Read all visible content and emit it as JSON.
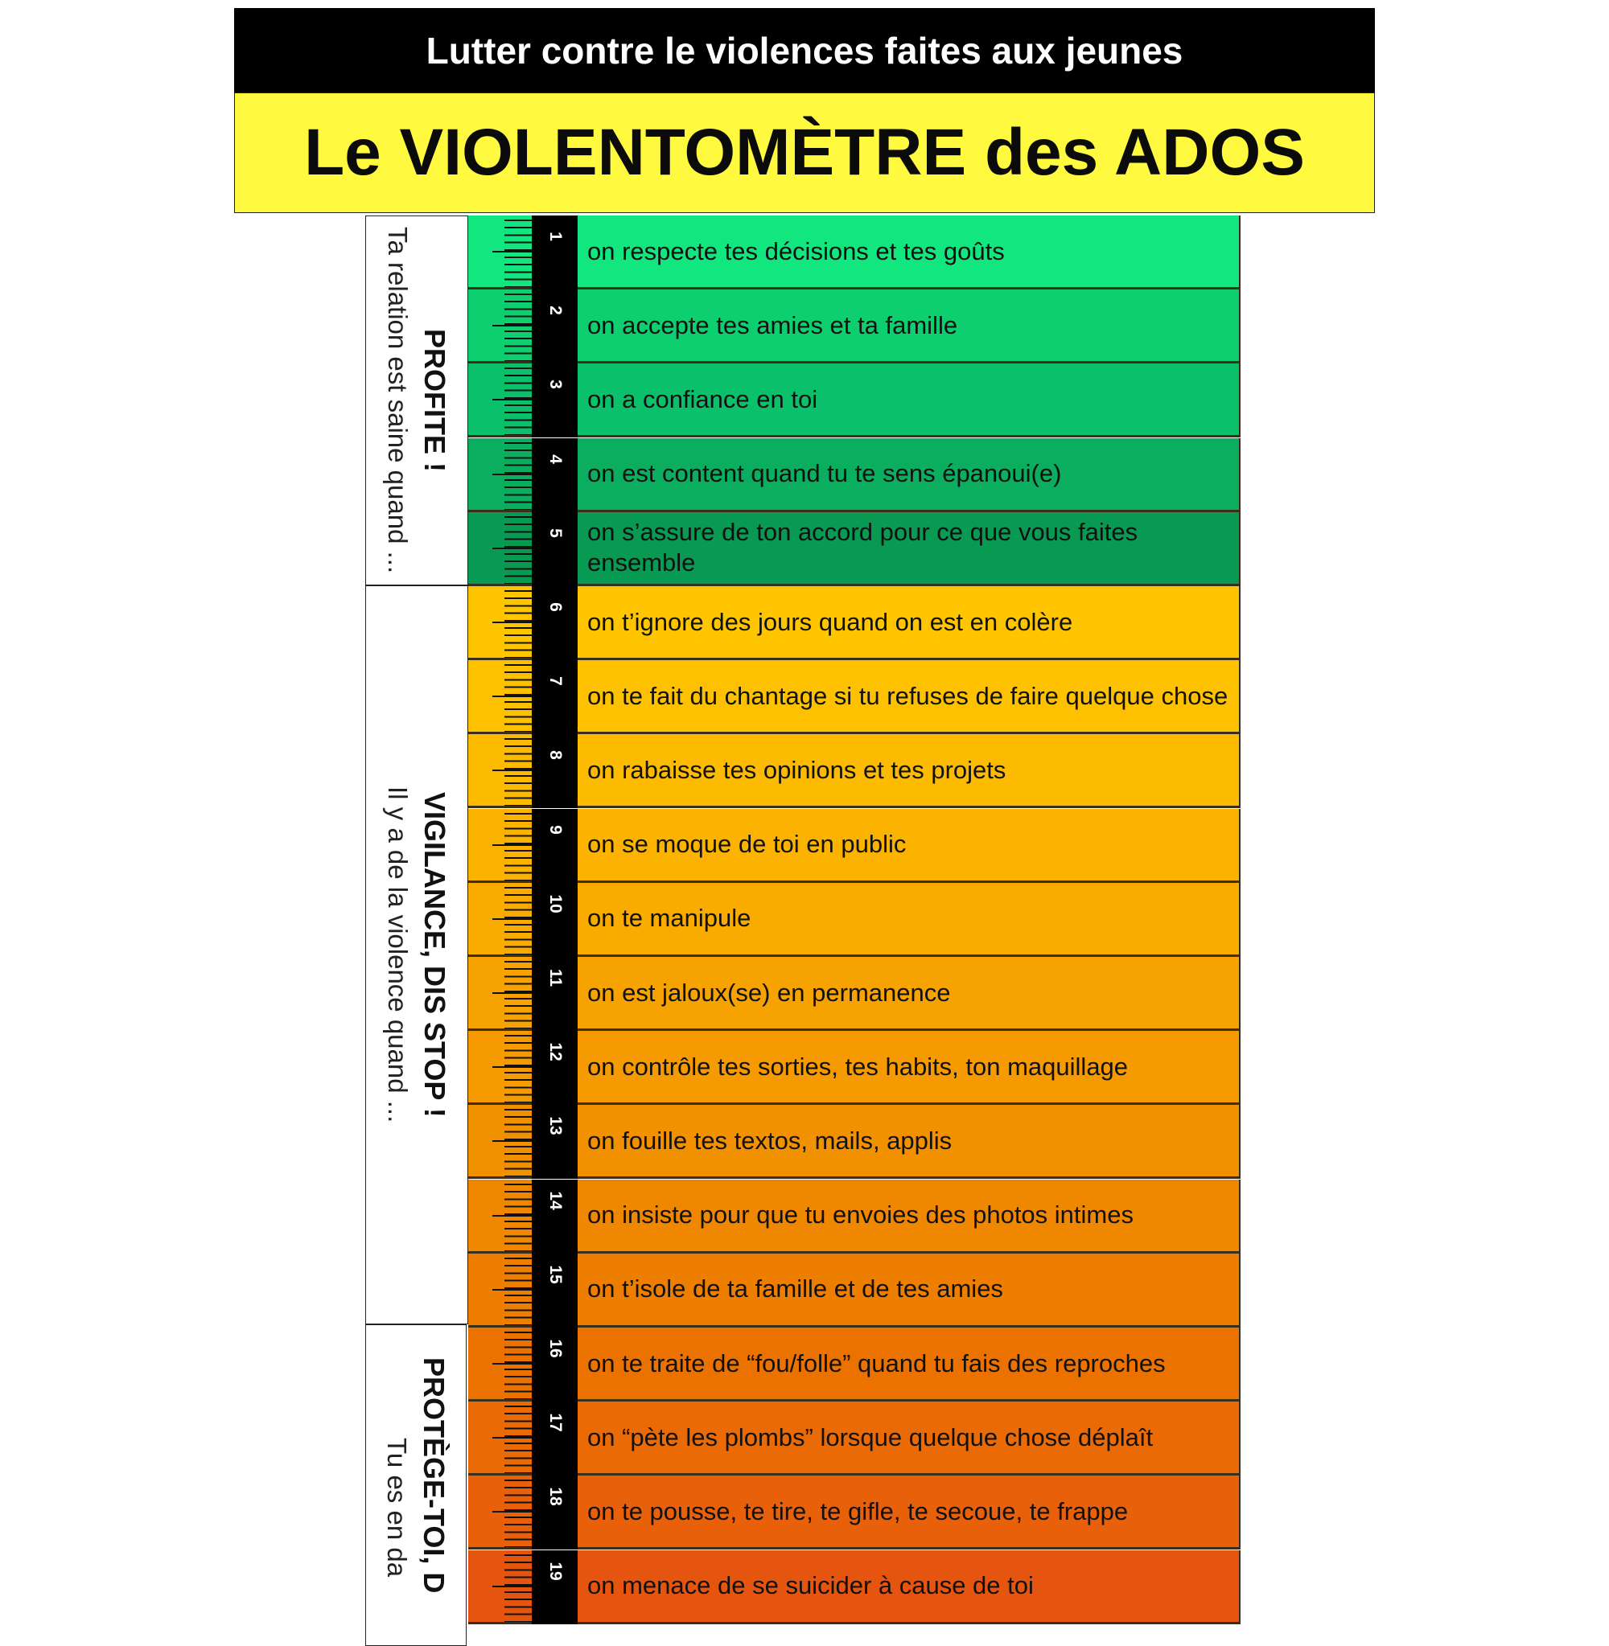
{
  "header": {
    "subtitle": "Lutter contre le violences faites aux jeunes",
    "title": "Le VIOLENTOMÈTRE des ADOS"
  },
  "sections": [
    {
      "heading": "PROFITE !",
      "text": "Ta relation est saine quand ..."
    },
    {
      "heading": "VIGILANCE, DIS STOP !",
      "text": "Il y a de la violence quand ..."
    },
    {
      "heading": "PROTÈGE-TOI, D",
      "text": "Tu es en da"
    }
  ],
  "items": [
    {
      "num": "1",
      "text": "on respecte tes décisions et tes goûts",
      "color": "#12E67E"
    },
    {
      "num": "2",
      "text": "on accepte tes amies et ta famille",
      "color": "#0DCF70"
    },
    {
      "num": "3",
      "text": "on a confiance en toi",
      "color": "#0BC06A"
    },
    {
      "num": "4",
      "text": "on est content quand tu te sens épanoui(e)",
      "color": "#0AAE5E"
    },
    {
      "num": "5",
      "text": "on s’assure de ton accord pour ce que vous faites ensemble",
      "color": "#089A52"
    },
    {
      "num": "6",
      "text": "on t’ignore des jours quand on est en colère",
      "color": "#FFC600"
    },
    {
      "num": "7",
      "text": "on te fait du chantage si tu refuses de faire quelque chose",
      "color": "#FDC100"
    },
    {
      "num": "8",
      "text": "on rabaisse tes opinions et tes projets",
      "color": "#FCBB00"
    },
    {
      "num": "9",
      "text": "on se moque de toi en public",
      "color": "#FBB300"
    },
    {
      "num": "10",
      "text": "on te manipule",
      "color": "#F9AB00"
    },
    {
      "num": "11",
      "text": "on est jaloux(se) en permanence",
      "color": "#F6A200"
    },
    {
      "num": "12",
      "text": "on contrôle tes sorties, tes habits, ton maquillage",
      "color": "#F59A00"
    },
    {
      "num": "13",
      "text": "on fouille tes textos, mails, applis",
      "color": "#F29100"
    },
    {
      "num": "14",
      "text": "on insiste pour que tu envoies des photos intimes",
      "color": "#F08700"
    },
    {
      "num": "15",
      "text": "on t’isole de ta famille et de tes amies",
      "color": "#EE7E00"
    },
    {
      "num": "16",
      "text": "on te traite de “fou/folle” quand tu fais des reproches",
      "color": "#EC7200"
    },
    {
      "num": "17",
      "text": "on “pète les plombs” lorsque quelque chose déplaît",
      "color": "#EA6A05"
    },
    {
      "num": "18",
      "text": "on te pousse, te tire, te gifle, te secoue, te frappe",
      "color": "#E9600A"
    },
    {
      "num": "19",
      "text": "on menace de se suicider à cause de toi",
      "color": "#E6550F"
    }
  ]
}
